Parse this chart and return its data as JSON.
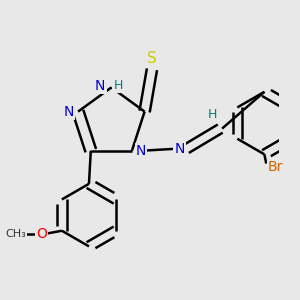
{
  "bg_color": "#e8e8e8",
  "atom_colors": {
    "N": "#0000cc",
    "S": "#cccc00",
    "O": "#ff0000",
    "Br": "#cc6600",
    "C": "#000000",
    "H": "#008080"
  },
  "bond_lw": 1.8,
  "font_size": 10,
  "small_font": 9
}
